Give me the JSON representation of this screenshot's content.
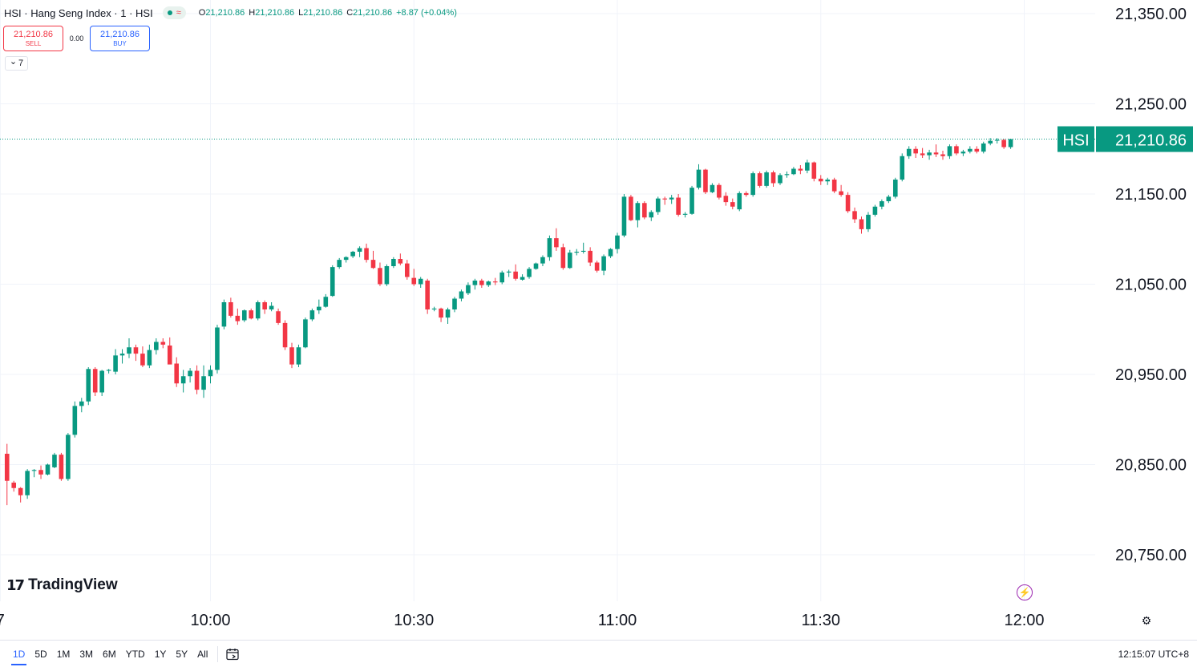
{
  "legend": {
    "title": "HSI · Hang Seng Index · 1 · HSI",
    "wave_icon": "≈",
    "o_label": "O",
    "o": "21,210.86",
    "h_label": "H",
    "h": "21,210.86",
    "l_label": "L",
    "l": "21,210.86",
    "c_label": "C",
    "c": "21,210.86",
    "change": "+8.87 (+0.04%)"
  },
  "trade": {
    "sell_price": "21,210.86",
    "sell_label": "SELL",
    "spread": "0.00",
    "buy_price": "21,210.86",
    "buy_label": "BUY"
  },
  "indicators_toggle": {
    "chevron": "⌄",
    "count": "7"
  },
  "brand": {
    "logo_mark": "17",
    "name": "TradingView"
  },
  "price_label": {
    "symbol": "HSI",
    "value": "21,210.86"
  },
  "bottom_bar": {
    "ranges": [
      "1D",
      "5D",
      "1M",
      "3M",
      "6M",
      "YTD",
      "1Y",
      "5Y",
      "All"
    ],
    "active_range": "1D",
    "clock": "12:15:07 UTC+8"
  },
  "colors": {
    "up": "#089981",
    "down": "#f23645",
    "grid": "#f0f3fa",
    "accent": "#2962ff"
  },
  "icons": [
    "goto-date-icon",
    "bolt-icon",
    "settings-icon",
    "chevron-down-icon",
    "tradingview-logo-icon"
  ],
  "chart_data": {
    "type": "candlestick",
    "interval": "1 minute",
    "y_ticks": [
      21350,
      21250,
      21150,
      21050,
      20950,
      20850,
      20750
    ],
    "y_tick_labels": [
      "21,350.00",
      "21,250.00",
      "21,150.00",
      "21,050.00",
      "20,950.00",
      "20,850.00",
      "20,750.00"
    ],
    "x_tick_labels": [
      "7",
      "10:00",
      "10:30",
      "11:00",
      "11:30",
      "12:00"
    ],
    "x_tick_times": [
      "09:29",
      "10:00",
      "10:30",
      "11:00",
      "11:30",
      "12:00"
    ],
    "current_price": 21210.86,
    "grid": true,
    "time_range": [
      "09:30",
      "12:00"
    ],
    "candles_ohlc": [
      [
        20862,
        20873,
        20805,
        20832
      ],
      [
        20830,
        20832,
        20820,
        20824
      ],
      [
        20824,
        20825,
        20808,
        20816
      ],
      [
        20816,
        20845,
        20812,
        20843
      ],
      [
        20843,
        20845,
        20836,
        20844
      ],
      [
        20844,
        20849,
        20834,
        20839
      ],
      [
        20839,
        20851,
        20838,
        20850
      ],
      [
        20847,
        20863,
        20846,
        20861
      ],
      [
        20861,
        20863,
        20832,
        20834
      ],
      [
        20834,
        20885,
        20832,
        20883
      ],
      [
        20883,
        20920,
        20880,
        20915
      ],
      [
        20915,
        20924,
        20908,
        20920
      ],
      [
        20920,
        20958,
        20916,
        20956
      ],
      [
        20956,
        20958,
        20926,
        20930
      ],
      [
        20930,
        20955,
        20926,
        20954
      ],
      [
        20954,
        20956,
        20951,
        20955
      ],
      [
        20953,
        20978,
        20950,
        20971
      ],
      [
        20971,
        20978,
        20962,
        20973
      ],
      [
        20973,
        20990,
        20968,
        20980
      ],
      [
        20980,
        20983,
        20965,
        20973
      ],
      [
        20973,
        20981,
        20958,
        20960
      ],
      [
        20960,
        20983,
        20957,
        20977
      ],
      [
        20977,
        20990,
        20972,
        20986
      ],
      [
        20986,
        20990,
        20979,
        20983
      ],
      [
        20982,
        20991,
        20962,
        20961
      ],
      [
        20962,
        20969,
        20936,
        20940
      ],
      [
        20940,
        20955,
        20930,
        20948
      ],
      [
        20948,
        20957,
        20941,
        20954
      ],
      [
        20954,
        20960,
        20928,
        20933
      ],
      [
        20933,
        20960,
        20924,
        20948
      ],
      [
        20948,
        20960,
        20940,
        20955
      ],
      [
        20955,
        21005,
        20951,
        21002
      ],
      [
        21003,
        21033,
        21000,
        21030
      ],
      [
        21030,
        21035,
        21013,
        21015
      ],
      [
        21015,
        21023,
        21005,
        21009
      ],
      [
        21010,
        21022,
        21008,
        21021
      ],
      [
        21021,
        21023,
        21011,
        21012
      ],
      [
        21012,
        21032,
        21010,
        21030
      ],
      [
        21030,
        21032,
        21017,
        21022
      ],
      [
        21022,
        21030,
        21020,
        21026
      ],
      [
        21020,
        21023,
        21005,
        21007
      ],
      [
        21007,
        21010,
        20977,
        20980
      ],
      [
        20980,
        20985,
        20957,
        20961
      ],
      [
        20961,
        20983,
        20958,
        20980
      ],
      [
        20980,
        21013,
        20979,
        21011
      ],
      [
        21011,
        21023,
        21009,
        21021
      ],
      [
        21021,
        21033,
        21017,
        21025
      ],
      [
        21025,
        21039,
        21024,
        21036
      ],
      [
        21037,
        21071,
        21036,
        21069
      ],
      [
        21069,
        21079,
        21067,
        21077
      ],
      [
        21077,
        21081,
        21074,
        21080
      ],
      [
        21081,
        21087,
        21079,
        21086
      ],
      [
        21086,
        21092,
        21080,
        21090
      ],
      [
        21090,
        21095,
        21074,
        21077
      ],
      [
        21077,
        21087,
        21067,
        21068
      ],
      [
        21068,
        21074,
        21048,
        21050
      ],
      [
        21050,
        21072,
        21048,
        21070
      ],
      [
        21070,
        21080,
        21068,
        21078
      ],
      [
        21078,
        21084,
        21071,
        21073
      ],
      [
        21073,
        21077,
        21055,
        21058
      ],
      [
        21057,
        21067,
        21048,
        21050
      ],
      [
        21050,
        21058,
        21046,
        21056
      ],
      [
        21054,
        21056,
        21017,
        21022
      ],
      [
        21022,
        21025,
        21020,
        21023
      ],
      [
        21023,
        21024,
        21008,
        21013
      ],
      [
        21013,
        21024,
        21006,
        21022
      ],
      [
        21022,
        21036,
        21019,
        21034
      ],
      [
        21034,
        21044,
        21031,
        21042
      ],
      [
        21040,
        21052,
        21038,
        21049
      ],
      [
        21049,
        21056,
        21044,
        21054
      ],
      [
        21054,
        21056,
        21046,
        21049
      ],
      [
        21049,
        21054,
        21047,
        21053
      ],
      [
        21053,
        21057,
        21049,
        21052
      ],
      [
        21052,
        21065,
        21050,
        21063
      ],
      [
        21063,
        21066,
        21058,
        21064
      ],
      [
        21064,
        21072,
        21054,
        21056
      ],
      [
        21055,
        21061,
        21054,
        21058
      ],
      [
        21058,
        21069,
        21056,
        21067
      ],
      [
        21067,
        21074,
        21066,
        21073
      ],
      [
        21073,
        21082,
        21070,
        21080
      ],
      [
        21080,
        21104,
        21076,
        21101
      ],
      [
        21101,
        21112,
        21087,
        21091
      ],
      [
        21091,
        21095,
        21066,
        21068
      ],
      [
        21068,
        21088,
        21067,
        21085
      ],
      [
        21085,
        21089,
        21082,
        21086
      ],
      [
        21086,
        21096,
        21084,
        21087
      ],
      [
        21087,
        21091,
        21070,
        21074
      ],
      [
        21074,
        21076,
        21063,
        21065
      ],
      [
        21065,
        21083,
        21060,
        21081
      ],
      [
        21081,
        21090,
        21079,
        21089
      ],
      [
        21089,
        21107,
        21084,
        21104
      ],
      [
        21104,
        21150,
        21102,
        21147
      ],
      [
        21147,
        21149,
        21120,
        21121
      ],
      [
        21121,
        21142,
        21113,
        21140
      ],
      [
        21140,
        21142,
        21122,
        21124
      ],
      [
        21124,
        21132,
        21120,
        21130
      ],
      [
        21130,
        21147,
        21127,
        21145
      ],
      [
        21145,
        21147,
        21138,
        21144
      ],
      [
        21144,
        21149,
        21139,
        21146
      ],
      [
        21146,
        21150,
        21125,
        21127
      ],
      [
        21127,
        21130,
        21124,
        21128
      ],
      [
        21128,
        21159,
        21127,
        21157
      ],
      [
        21157,
        21183,
        21155,
        21177
      ],
      [
        21177,
        21178,
        21150,
        21152
      ],
      [
        21152,
        21162,
        21151,
        21160
      ],
      [
        21160,
        21162,
        21144,
        21146
      ],
      [
        21148,
        21152,
        21137,
        21141
      ],
      [
        21141,
        21145,
        21133,
        21136
      ],
      [
        21133,
        21153,
        21131,
        21151
      ],
      [
        21151,
        21153,
        21147,
        21149
      ],
      [
        21149,
        21175,
        21147,
        21173
      ],
      [
        21173,
        21175,
        21157,
        21159
      ],
      [
        21159,
        21176,
        21157,
        21174
      ],
      [
        21174,
        21176,
        21158,
        21162
      ],
      [
        21162,
        21173,
        21160,
        21171
      ],
      [
        21171,
        21175,
        21168,
        21172
      ],
      [
        21172,
        21180,
        21171,
        21178
      ],
      [
        21178,
        21182,
        21172,
        21176
      ],
      [
        21176,
        21188,
        21173,
        21185
      ],
      [
        21185,
        21186,
        21164,
        21167
      ],
      [
        21167,
        21171,
        21160,
        21164
      ],
      [
        21164,
        21168,
        21160,
        21166
      ],
      [
        21166,
        21168,
        21151,
        21153
      ],
      [
        21153,
        21160,
        21147,
        21149
      ],
      [
        21149,
        21152,
        21129,
        21131
      ],
      [
        21131,
        21135,
        21118,
        21122
      ],
      [
        21122,
        21125,
        21106,
        21111
      ],
      [
        21111,
        21130,
        21108,
        21127
      ],
      [
        21127,
        21138,
        21125,
        21136
      ],
      [
        21136,
        21144,
        21133,
        21142
      ],
      [
        21142,
        21149,
        21140,
        21147
      ],
      [
        21147,
        21168,
        21145,
        21166
      ],
      [
        21166,
        21195,
        21164,
        21192
      ],
      [
        21192,
        21203,
        21189,
        21200
      ],
      [
        21200,
        21203,
        21190,
        21195
      ],
      [
        21195,
        21201,
        21190,
        21193
      ],
      [
        21193,
        21199,
        21188,
        21196
      ],
      [
        21196,
        21205,
        21191,
        21194
      ],
      [
        21194,
        21198,
        21188,
        21192
      ],
      [
        21192,
        21205,
        21189,
        21203
      ],
      [
        21203,
        21205,
        21193,
        21195
      ],
      [
        21195,
        21199,
        21192,
        21197
      ],
      [
        21197,
        21203,
        21195,
        21200
      ],
      [
        21200,
        21203,
        21195,
        21197
      ],
      [
        21197,
        21208,
        21195,
        21206
      ],
      [
        21206,
        21212,
        21204,
        21209
      ],
      [
        21209,
        21212,
        21206,
        21210
      ],
      [
        21210,
        21211,
        21200,
        21202
      ],
      [
        21202,
        21211,
        21200,
        21210.86
      ]
    ]
  }
}
